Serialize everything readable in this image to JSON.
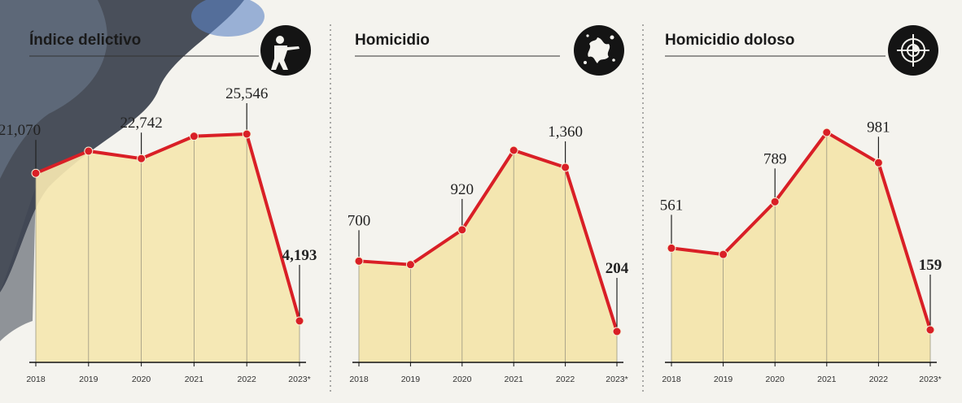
{
  "chart_data": [
    {
      "type": "area",
      "title": "Índice delictivo",
      "icon": "gunman-silhouette-icon",
      "categories": [
        "2018",
        "2019",
        "2020",
        "2021",
        "2022",
        "2023*"
      ],
      "values": [
        21070,
        23600,
        22742,
        25300,
        25546,
        4193
      ],
      "data_labels": [
        "21,070",
        "",
        "22,742",
        "",
        "25,546",
        "4,193"
      ],
      "colors": {
        "line": "#d91f26",
        "fill": "#f4e6b0"
      }
    },
    {
      "type": "area",
      "title": "Homicidio",
      "icon": "blood-splatter-icon",
      "categories": [
        "2018",
        "2019",
        "2020",
        "2021",
        "2022",
        "2023*"
      ],
      "values": [
        700,
        675,
        920,
        1480,
        1360,
        204
      ],
      "data_labels": [
        "700",
        "",
        "920",
        "",
        "1,360",
        "204"
      ],
      "colors": {
        "line": "#d91f26",
        "fill": "#f4e6b0"
      }
    },
    {
      "type": "area",
      "title": "Homicidio doloso",
      "icon": "crosshair-target-icon",
      "categories": [
        "2018",
        "2019",
        "2020",
        "2021",
        "2022",
        "2023*"
      ],
      "values": [
        561,
        530,
        789,
        1130,
        981,
        159
      ],
      "data_labels": [
        "561",
        "",
        "789",
        "",
        "981",
        "159"
      ],
      "colors": {
        "line": "#d91f26",
        "fill": "#f4e6b0"
      }
    }
  ]
}
